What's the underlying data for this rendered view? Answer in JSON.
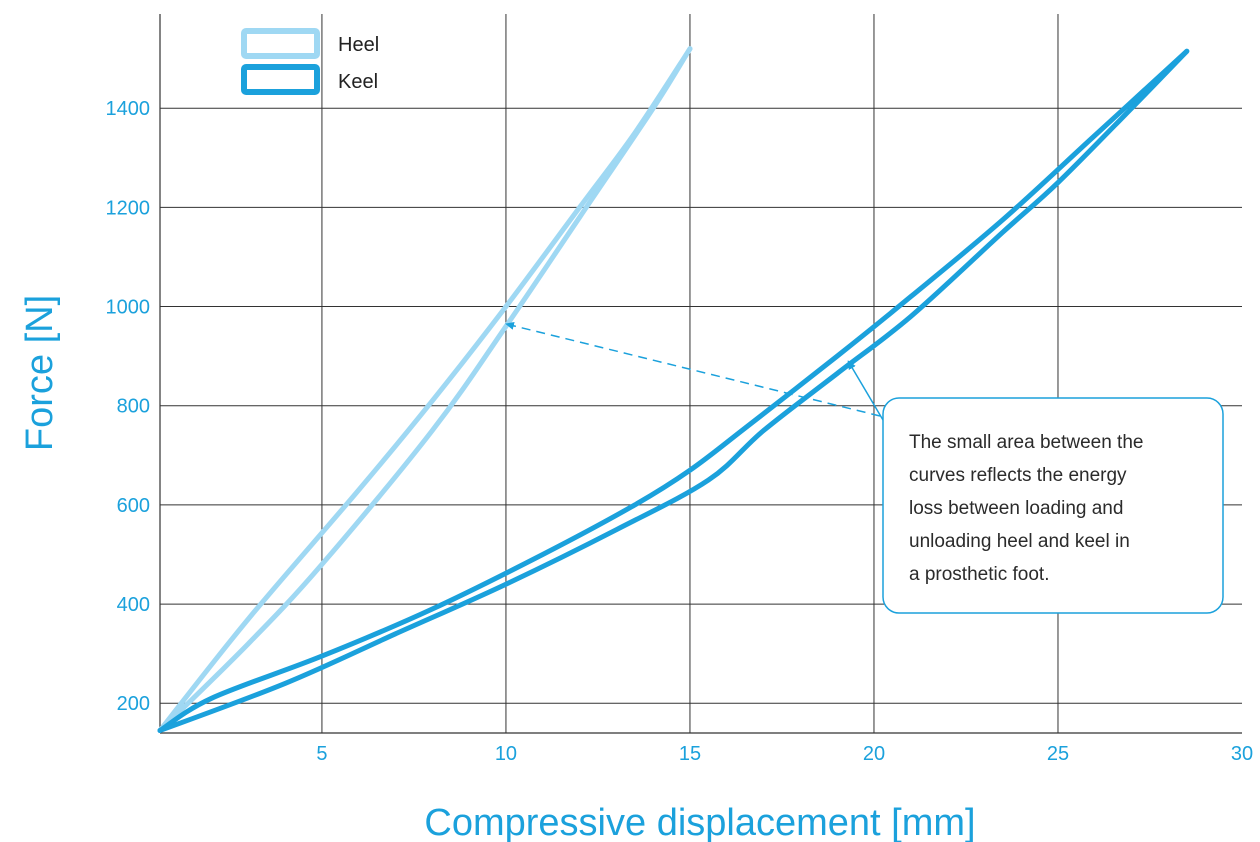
{
  "chart_data": {
    "type": "line",
    "xlabel": "Compressive displacement [mm]",
    "ylabel": "Force [N]",
    "xlim": [
      0.6,
      30
    ],
    "ylim": [
      140,
      1590
    ],
    "xticks": [
      5,
      10,
      15,
      20,
      25,
      30
    ],
    "yticks": [
      200,
      400,
      600,
      800,
      1000,
      1200,
      1400
    ],
    "grid": true,
    "legend_position": "top-left",
    "colors": {
      "heel": "#9fd8f3",
      "keel": "#1ba1dc",
      "axis_text": "#1ba1dc"
    },
    "series": [
      {
        "name": "Heel",
        "loading": {
          "x": [
            0.6,
            3,
            6,
            8,
            10,
            12,
            13.5,
            15
          ],
          "y": [
            145,
            370,
            630,
            810,
            1000,
            1200,
            1350,
            1520
          ]
        },
        "unloading": {
          "x": [
            15,
            14,
            12,
            10,
            8,
            5,
            3,
            0.6
          ],
          "y": [
            1520,
            1400,
            1180,
            960,
            750,
            480,
            320,
            145
          ]
        }
      },
      {
        "name": "Keel",
        "loading": {
          "x": [
            0.6,
            2,
            5,
            8,
            11,
            13.5,
            15,
            16.5,
            19,
            21,
            23.5,
            26,
            28.5
          ],
          "y": [
            145,
            210,
            295,
            390,
            500,
            600,
            670,
            755,
            900,
            1020,
            1175,
            1345,
            1515
          ]
        },
        "unloading": {
          "x": [
            28.5,
            27,
            25,
            23.5,
            21,
            19,
            17,
            15.5,
            13,
            10,
            7,
            4,
            0.6
          ],
          "y": [
            1515,
            1400,
            1250,
            1150,
            980,
            865,
            750,
            650,
            550,
            440,
            340,
            240,
            145
          ]
        }
      }
    ],
    "annotation": {
      "text_lines": [
        "The small area between the",
        "curves reflects the energy",
        "loss between loading and",
        "unloading heel and keel in",
        "a prosthetic foot."
      ],
      "arrows": [
        {
          "target_series": "Heel",
          "x": 10,
          "y": 965,
          "style": "dashed"
        },
        {
          "target_series": "Keel",
          "x": 19.3,
          "y": 890,
          "style": "solid"
        }
      ]
    }
  }
}
